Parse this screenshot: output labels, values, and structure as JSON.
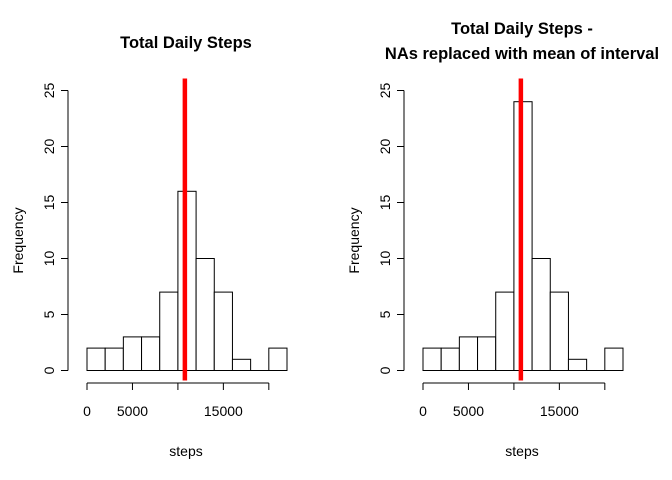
{
  "chart_data": [
    {
      "type": "bar",
      "subtype": "histogram",
      "title_lines": [
        "Total Daily Steps"
      ],
      "xlabel": "steps",
      "ylabel": "Frequency",
      "bin_width": 2000,
      "bin_edges": [
        0,
        2000,
        4000,
        6000,
        8000,
        10000,
        12000,
        14000,
        16000,
        18000,
        20000,
        22000
      ],
      "values": [
        2,
        2,
        3,
        3,
        7,
        16,
        10,
        7,
        1,
        0,
        2
      ],
      "xlim": [
        0,
        22000
      ],
      "ylim": [
        0,
        25
      ],
      "x_ticks": [
        0,
        5000,
        10000,
        15000,
        20000
      ],
      "x_tick_labels": [
        "0",
        "5000",
        "",
        "15000",
        ""
      ],
      "y_ticks": [
        0,
        5,
        10,
        15,
        20,
        25
      ],
      "y_tick_labels": [
        "0",
        "5",
        "10",
        "15",
        "20",
        "25"
      ],
      "reference_line": {
        "x": 10766,
        "color": "#ff0000"
      },
      "bar_fill": "#ffffff",
      "bar_stroke": "#000000",
      "grid": false
    },
    {
      "type": "bar",
      "subtype": "histogram",
      "title_lines": [
        "Total Daily Steps -",
        "NAs replaced with mean of interval"
      ],
      "xlabel": "steps",
      "ylabel": "Frequency",
      "bin_width": 2000,
      "bin_edges": [
        0,
        2000,
        4000,
        6000,
        8000,
        10000,
        12000,
        14000,
        16000,
        18000,
        20000,
        22000
      ],
      "values": [
        2,
        2,
        3,
        3,
        7,
        24,
        10,
        7,
        1,
        0,
        2
      ],
      "xlim": [
        0,
        22000
      ],
      "ylim": [
        0,
        25
      ],
      "x_ticks": [
        0,
        5000,
        10000,
        15000,
        20000
      ],
      "x_tick_labels": [
        "0",
        "5000",
        "",
        "15000",
        ""
      ],
      "y_ticks": [
        0,
        5,
        10,
        15,
        20,
        25
      ],
      "y_tick_labels": [
        "0",
        "5",
        "10",
        "15",
        "20",
        "25"
      ],
      "reference_line": {
        "x": 10766,
        "color": "#ff0000"
      },
      "bar_fill": "#ffffff",
      "bar_stroke": "#000000",
      "grid": false
    }
  ]
}
